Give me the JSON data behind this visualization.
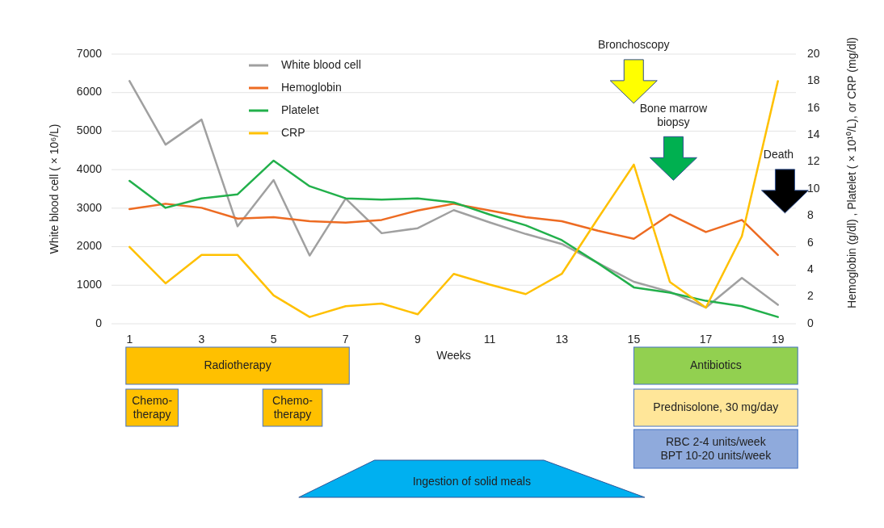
{
  "chart_data": [
    {
      "type": "line",
      "xlabel": "Weeks",
      "ylabel": "White blood cell ( × 10⁶/L)",
      "y2label": "Hemoglobin (g/dl) , Platelet ( × 10¹⁰/L), or CRP (mg/dl)",
      "x": [
        1,
        2,
        3,
        4,
        5,
        6,
        7,
        8,
        9,
        10,
        11,
        12,
        13,
        14,
        15,
        16,
        17,
        18,
        19
      ],
      "xlim": [
        0.5,
        19.5
      ],
      "xticks": [
        1,
        3,
        5,
        7,
        9,
        11,
        13,
        15,
        17,
        19
      ],
      "ylim": [
        0,
        7000
      ],
      "yticks": [
        0,
        1000,
        2000,
        3000,
        4000,
        5000,
        6000,
        7000
      ],
      "y2lim": [
        0,
        20
      ],
      "y2ticks": [
        0,
        2,
        4,
        6,
        8,
        10,
        12,
        14,
        16,
        18,
        20
      ],
      "grid": "y",
      "legend": "top left",
      "marker": "none",
      "line_style": "solid",
      "series": [
        {
          "name": "White blood cell",
          "color": "#a0a0a0",
          "values": [
            6300,
            4650,
            5300,
            2530,
            3730,
            1770,
            3250,
            2350,
            2480,
            2950,
            2630,
            2330,
            2070,
            1580,
            1090,
            830,
            420,
            1190,
            490
          ]
        },
        {
          "name": "Hemoglobin",
          "color": "#ed6b22",
          "axis": "y2",
          "values": [
            8.5,
            8.9,
            8.6,
            7.8,
            7.9,
            7.6,
            7.5,
            7.7,
            8.4,
            8.9,
            8.4,
            7.9,
            7.6,
            6.9,
            6.3,
            8.1,
            6.8,
            7.7,
            5.1
          ]
        },
        {
          "name": "Platelet",
          "color": "#22b04b",
          "axis": "y2",
          "values": [
            10.6,
            8.6,
            9.3,
            9.6,
            12.1,
            10.2,
            9.3,
            9.2,
            9.3,
            9.0,
            8.1,
            7.3,
            6.2,
            4.5,
            2.7,
            2.3,
            1.7,
            1.3,
            0.5
          ]
        },
        {
          "name": "CRP",
          "color": "#ffc000",
          "axis": "y2",
          "values": [
            5.7,
            3.0,
            5.1,
            5.1,
            2.1,
            0.5,
            1.3,
            1.5,
            0.7,
            3.7,
            2.9,
            2.2,
            3.7,
            7.8,
            11.8,
            3.1,
            1.2,
            6.5,
            18.0
          ]
        }
      ],
      "annotations": [
        "Bronchoscopy",
        "Bone marrow\nbiopsy",
        "Death"
      ]
    },
    {
      "type": "other",
      "annotations": [
        "Radiotherapy",
        "Chemo-\ntherapy",
        "Chemo-\ntherapy",
        "Antibiotics",
        "Prednisolone, 30 mg/day",
        "RBC 2-4 units/week\nBPT 10-20 units/week",
        "Ingestion of solid meals"
      ]
    }
  ]
}
